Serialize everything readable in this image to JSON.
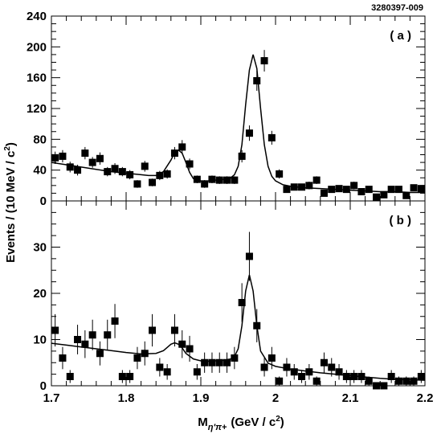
{
  "figure_id": "3280397-009",
  "xlabel": {
    "main": "M",
    "sub": "η′π+",
    "units": "(GeV / c",
    "sup": "2",
    "close": ")"
  },
  "ylabel": {
    "main": "Events / (10 MeV / c",
    "sup": "2",
    "close": ")"
  },
  "chart_data": [
    {
      "type": "scatter",
      "panel_label": "( a )",
      "xlim": [
        1.7,
        2.2
      ],
      "ylim": [
        0,
        240
      ],
      "x_ticks": [
        1.7,
        1.8,
        1.9,
        2.0,
        2.1,
        2.2
      ],
      "x_tick_labels": [
        "",
        "",
        "",
        "",
        "",
        ""
      ],
      "y_ticks": [
        0,
        40,
        80,
        120,
        160,
        200,
        240
      ],
      "y_tick_labels": [
        "0",
        "40",
        "80",
        "120",
        "160",
        "200",
        "240"
      ],
      "series": [
        {
          "x": [
            1.705,
            1.715,
            1.725,
            1.735,
            1.745,
            1.755,
            1.765,
            1.775,
            1.785,
            1.795,
            1.805,
            1.815,
            1.825,
            1.835,
            1.845,
            1.855,
            1.865,
            1.875,
            1.885,
            1.895,
            1.905,
            1.915,
            1.925,
            1.935,
            1.945,
            1.955,
            1.965,
            1.975,
            1.985,
            1.995,
            2.005,
            2.015,
            2.025,
            2.035,
            2.045,
            2.055,
            2.065,
            2.075,
            2.085,
            2.095,
            2.105,
            2.115,
            2.125,
            2.135,
            2.145,
            2.155,
            2.165,
            2.175,
            2.185,
            2.195
          ],
          "y": [
            56,
            58,
            44,
            40,
            62,
            50,
            55,
            38,
            42,
            38,
            34,
            22,
            45,
            24,
            33,
            35,
            62,
            70,
            48,
            28,
            22,
            28,
            27,
            27,
            27,
            58,
            88,
            156,
            182,
            82,
            35,
            15,
            18,
            18,
            20,
            27,
            10,
            15,
            16,
            15,
            20,
            12,
            15,
            5,
            8,
            15,
            15,
            7,
            17,
            16
          ],
          "yerr": [
            8,
            8,
            7,
            7,
            8,
            7,
            8,
            6,
            7,
            6,
            6,
            5,
            7,
            5,
            6,
            6,
            8,
            9,
            7,
            5,
            5,
            5,
            5,
            5,
            5,
            8,
            10,
            13,
            14,
            9,
            6,
            4,
            4,
            4,
            5,
            5,
            3,
            4,
            4,
            4,
            5,
            4,
            4,
            3,
            3,
            4,
            4,
            3,
            4,
            4
          ]
        },
        {
          "x": [
            1.7,
            1.72,
            1.74,
            1.76,
            1.78,
            1.8,
            1.82,
            1.83,
            1.84,
            1.85,
            1.86,
            1.865,
            1.87,
            1.875,
            1.88,
            1.885,
            1.89,
            1.9,
            1.91,
            1.92,
            1.93,
            1.94,
            1.945,
            1.95,
            1.955,
            1.96,
            1.965,
            1.97,
            1.975,
            1.98,
            1.985,
            1.99,
            1.995,
            2.0,
            2.01,
            2.02,
            2.04,
            2.06,
            2.08,
            2.1,
            2.12,
            2.14,
            2.16,
            2.18,
            2.2
          ],
          "y": [
            50,
            47,
            44,
            41,
            38,
            36,
            34,
            33,
            33,
            38,
            53,
            63,
            66,
            62,
            50,
            37,
            29,
            26,
            26,
            27,
            28,
            30,
            34,
            45,
            73,
            125,
            170,
            190,
            172,
            120,
            73,
            45,
            32,
            26,
            21,
            19,
            17,
            16,
            15,
            14,
            13,
            12,
            12,
            11,
            11
          ]
        }
      ]
    },
    {
      "type": "scatter",
      "panel_label": "( b )",
      "xlim": [
        1.7,
        2.2
      ],
      "ylim": [
        0,
        40
      ],
      "x_ticks": [
        1.7,
        1.8,
        1.9,
        2.0,
        2.1,
        2.2
      ],
      "x_tick_labels": [
        "1.7",
        "1.8",
        "1.9",
        "2",
        "2.1",
        "2.2"
      ],
      "y_ticks": [
        0,
        10,
        20,
        30
      ],
      "y_tick_labels": [
        "0",
        "10",
        "20",
        "30"
      ],
      "series": [
        {
          "x": [
            1.705,
            1.715,
            1.725,
            1.735,
            1.745,
            1.755,
            1.765,
            1.775,
            1.785,
            1.795,
            1.805,
            1.815,
            1.825,
            1.835,
            1.845,
            1.855,
            1.865,
            1.875,
            1.885,
            1.895,
            1.905,
            1.915,
            1.925,
            1.935,
            1.945,
            1.955,
            1.965,
            1.975,
            1.985,
            1.995,
            2.005,
            2.015,
            2.025,
            2.035,
            2.045,
            2.055,
            2.065,
            2.075,
            2.085,
            2.095,
            2.105,
            2.115,
            2.125,
            2.135,
            2.145,
            2.155,
            2.165,
            2.175,
            2.185,
            2.195
          ],
          "y": [
            12,
            6,
            2,
            10,
            9,
            11,
            7,
            11,
            14,
            2,
            2,
            6,
            7,
            12,
            4,
            3,
            12,
            9,
            8,
            3,
            5,
            5,
            5,
            5,
            6,
            18,
            28,
            13,
            4,
            6,
            1,
            4,
            3,
            2,
            3,
            1,
            5,
            4,
            3,
            2,
            2,
            2,
            1,
            0,
            0,
            2,
            1,
            1,
            1,
            2
          ],
          "yerr": [
            3.5,
            2.4,
            1.4,
            3.2,
            3,
            3.3,
            2.6,
            3.3,
            3.7,
            1.4,
            1.4,
            2.4,
            2.6,
            3.5,
            2,
            1.7,
            3.5,
            3,
            2.8,
            1.7,
            2.2,
            2.2,
            2.2,
            2.2,
            2.4,
            4.2,
            5.3,
            3.6,
            2,
            2.4,
            1,
            2,
            1.7,
            1.4,
            1.7,
            1,
            2.2,
            2,
            1.7,
            1.4,
            1.4,
            1.4,
            1,
            0,
            0,
            1.4,
            1,
            1,
            1,
            1.4
          ]
        },
        {
          "x": [
            1.7,
            1.72,
            1.74,
            1.76,
            1.78,
            1.8,
            1.82,
            1.84,
            1.85,
            1.855,
            1.86,
            1.865,
            1.87,
            1.875,
            1.88,
            1.89,
            1.9,
            1.91,
            1.92,
            1.93,
            1.94,
            1.945,
            1.95,
            1.955,
            1.96,
            1.965,
            1.97,
            1.975,
            1.98,
            1.99,
            2.0,
            2.02,
            2.04,
            2.06,
            2.08,
            2.1,
            2.12,
            2.14,
            2.16,
            2.18,
            2.2
          ],
          "y": [
            9.2,
            8.8,
            8.4,
            8.0,
            7.6,
            7.2,
            6.9,
            7.0,
            7.6,
            8.3,
            9.0,
            9.3,
            9.0,
            8.2,
            7.0,
            5.8,
            5.4,
            5.3,
            5.4,
            5.5,
            5.8,
            6.3,
            8.0,
            13.0,
            20.5,
            24.0,
            20.5,
            13.0,
            7.5,
            4.9,
            4.2,
            3.6,
            3.2,
            2.8,
            2.5,
            2.2,
            1.9,
            1.6,
            1.4,
            1.3,
            1.2
          ]
        }
      ]
    }
  ]
}
